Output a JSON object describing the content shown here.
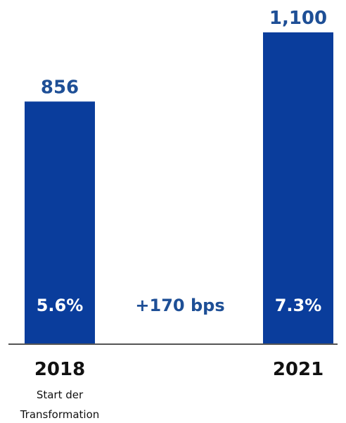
{
  "chart_data": {
    "type": "bar",
    "categories": [
      "2018",
      "2021"
    ],
    "values": [
      856,
      1100
    ],
    "value_labels": [
      "856",
      "1,100"
    ],
    "margin_labels": [
      "5.6%",
      "7.3%"
    ],
    "change_label": "+170 bps",
    "category_notes": [
      "Start der\nTransformation",
      ""
    ],
    "note_lines": [
      "Start der",
      "Transformation"
    ],
    "ylim": [
      0,
      1100
    ],
    "grid": false,
    "colors": {
      "bar": "#0a3d9c",
      "value_text": "#1e4f96",
      "bar_text": "#ffffff",
      "axis": "#555555",
      "category_text": "#111111"
    }
  }
}
